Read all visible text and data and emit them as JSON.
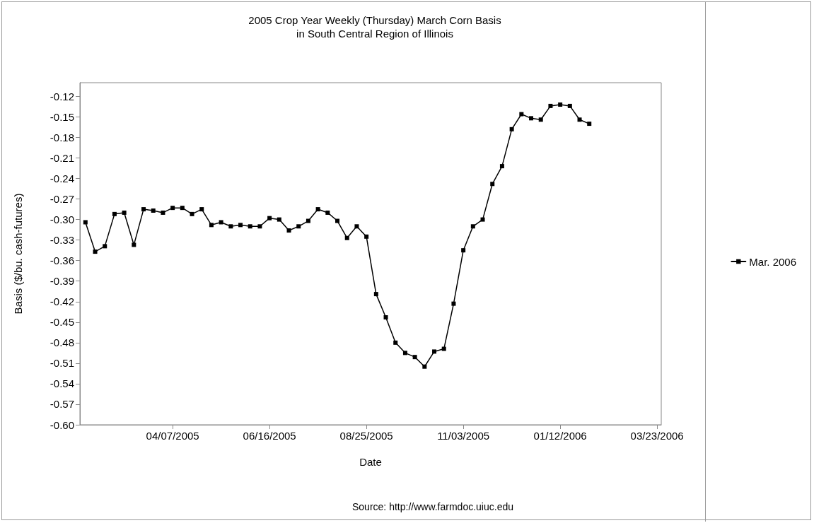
{
  "chart_data": {
    "type": "line",
    "title": "2005 Crop Year Weekly (Thursday) March Corn Basis",
    "subtitle": "in South Central Region of Illinois",
    "xlabel": "Date",
    "ylabel": "Basis ($/bu. cash-futures)",
    "annotations": [
      "Source: http://www.farmdoc.uiuc.edu"
    ],
    "x": [
      "2005-02-03",
      "2005-02-10",
      "2005-02-17",
      "2005-02-24",
      "2005-03-03",
      "2005-03-10",
      "2005-03-17",
      "2005-03-24",
      "2005-03-31",
      "2005-04-07",
      "2005-04-14",
      "2005-04-21",
      "2005-04-28",
      "2005-05-05",
      "2005-05-12",
      "2005-05-19",
      "2005-05-26",
      "2005-06-02",
      "2005-06-09",
      "2005-06-16",
      "2005-06-23",
      "2005-06-30",
      "2005-07-07",
      "2005-07-14",
      "2005-07-21",
      "2005-07-28",
      "2005-08-04",
      "2005-08-11",
      "2005-08-18",
      "2005-08-25",
      "2005-09-01",
      "2005-09-08",
      "2005-09-15",
      "2005-09-22",
      "2005-09-29",
      "2005-10-06",
      "2005-10-13",
      "2005-10-20",
      "2005-10-27",
      "2005-11-03",
      "2005-11-10",
      "2005-11-17",
      "2005-11-24",
      "2005-12-01",
      "2005-12-08",
      "2005-12-15",
      "2005-12-22",
      "2005-12-29",
      "2006-01-05",
      "2006-01-12",
      "2006-01-19",
      "2006-01-26",
      "2006-02-02"
    ],
    "series": [
      {
        "name": "Mar. 2006",
        "color": "#000000",
        "values": [
          -0.304,
          -0.347,
          -0.339,
          -0.292,
          -0.29,
          -0.337,
          -0.285,
          -0.287,
          -0.29,
          -0.283,
          -0.283,
          -0.292,
          -0.285,
          -0.308,
          -0.304,
          -0.31,
          -0.308,
          -0.31,
          -0.31,
          -0.298,
          -0.3,
          -0.316,
          -0.31,
          -0.302,
          -0.285,
          -0.29,
          -0.302,
          -0.327,
          -0.31,
          -0.325,
          -0.409,
          -0.443,
          -0.48,
          -0.495,
          -0.501,
          -0.515,
          -0.493,
          -0.489,
          -0.423,
          -0.345,
          -0.31,
          -0.3,
          -0.248,
          -0.222,
          -0.168,
          -0.146,
          -0.152,
          -0.154,
          -0.134,
          -0.132,
          -0.134,
          -0.154,
          -0.16
        ]
      }
    ],
    "xlim": [
      "2005-01-30",
      "2006-03-26"
    ],
    "xticks": [
      {
        "value": "2005-04-07",
        "label": "04/07/2005"
      },
      {
        "value": "2005-06-16",
        "label": "06/16/2005"
      },
      {
        "value": "2005-08-25",
        "label": "08/25/2005"
      },
      {
        "value": "2005-11-03",
        "label": "11/03/2005"
      },
      {
        "value": "2006-01-12",
        "label": "01/12/2006"
      },
      {
        "value": "2006-03-23",
        "label": "03/23/2006"
      }
    ],
    "ylim": [
      -0.6,
      -0.1
    ],
    "yticks": [
      -0.12,
      -0.15,
      -0.18,
      -0.21,
      -0.24,
      -0.27,
      {
        "value": -0.3,
        "label": "-0.30"
      },
      -0.33,
      -0.36,
      -0.39,
      -0.42,
      -0.45,
      -0.48,
      -0.51,
      -0.54,
      -0.57,
      {
        "value": -0.6,
        "label": "-0.60"
      }
    ],
    "legend": "right",
    "marker": "square",
    "line_style": "solid"
  }
}
